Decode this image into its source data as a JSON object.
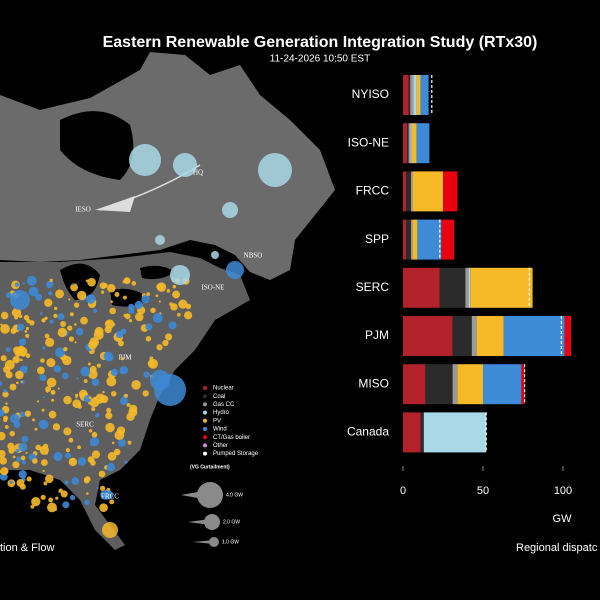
{
  "chart_data": {
    "type": "bar",
    "orientation": "horizontal",
    "stacked": true,
    "title": "Eastern Renewable Generation Integration Study (RTx30)",
    "subtitle": "11-24-2026 10:50 EST",
    "xlabel": "GW",
    "categories": [
      "NYISO",
      "ISO-NE",
      "FRCC",
      "SPP",
      "SERC",
      "PJM",
      "MISO",
      "Canada"
    ],
    "series": [
      {
        "name": "Nuclear",
        "color": "#b3222b",
        "values": [
          3.5,
          2.5,
          2,
          2,
          23,
          31,
          14,
          11
        ]
      },
      {
        "name": "Coal",
        "color": "#2b2b2b",
        "values": [
          1,
          1,
          3,
          3,
          16,
          12,
          17,
          2
        ]
      },
      {
        "name": "Gas CC",
        "color": "#9a9a9a",
        "values": [
          2,
          1,
          1,
          1,
          2,
          3,
          3,
          0
        ]
      },
      {
        "name": "Hydro",
        "color": "#a9d8e6",
        "values": [
          2,
          1,
          0,
          0,
          1,
          0,
          0,
          39
        ]
      },
      {
        "name": "PV",
        "color": "#f6b928",
        "values": [
          2.5,
          3,
          19,
          3,
          39,
          17,
          16,
          0
        ]
      },
      {
        "name": "Wind",
        "color": "#3d8ad6",
        "values": [
          5,
          8,
          0,
          15,
          0,
          38,
          24,
          0
        ]
      },
      {
        "name": "CT/Gas boiler",
        "color": "#e8000f",
        "values": [
          0,
          0,
          9,
          8,
          0,
          4,
          2,
          0
        ]
      }
    ],
    "reference_values": [
      18,
      null,
      null,
      23,
      79,
      99,
      76,
      52
    ],
    "xlim": [
      0,
      108
    ],
    "xticks": [
      0,
      50,
      100
    ]
  },
  "map": {
    "region_labels": [
      "IESO",
      "HQ",
      "NBSO",
      "ISO-NE",
      "PJM",
      "SERC",
      "FRCC"
    ],
    "legend_extra": [
      {
        "name": "Other",
        "color": "#d78ae0"
      },
      {
        "name": "Pumped Storage",
        "color": "#ffffff"
      }
    ],
    "curtailment_title": "(VG Curtailment)",
    "curtailment_sizes": [
      "4.0 GW",
      "2.0 GW",
      "1.0 GW"
    ],
    "caption": "tion & Flow"
  },
  "chart_caption": "Regional dispatc"
}
